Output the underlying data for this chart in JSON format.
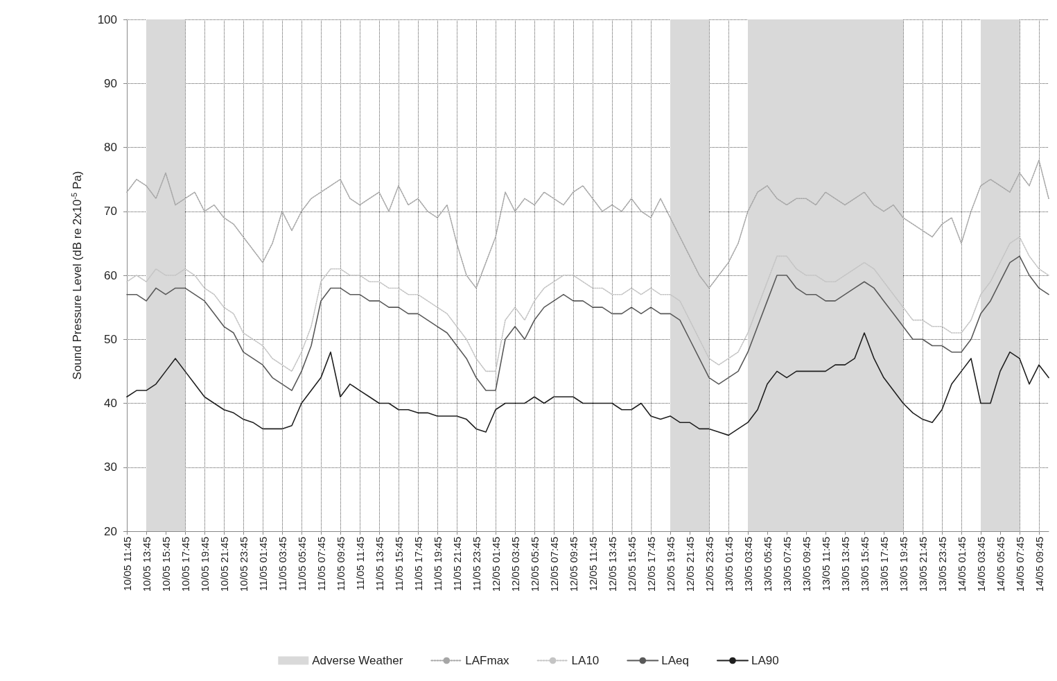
{
  "chart_data": {
    "type": "line",
    "ylabel": "Sound Pressure Level (dB re 2x10$^{-5}$ Pa)",
    "categories": [
      "10/05 11:45",
      null,
      "10/05 13:45",
      null,
      "10/05 15:45",
      null,
      "10/05 17:45",
      null,
      "10/05 19:45",
      null,
      "10/05 21:45",
      null,
      "10/05 23:45",
      null,
      "11/05 01:45",
      null,
      "11/05 03:45",
      null,
      "11/05 05:45",
      null,
      "11/05 07:45",
      null,
      "11/05 09:45",
      null,
      "11/05 11:45",
      null,
      "11/05 13:45",
      null,
      "11/05 15:45",
      null,
      "11/05 17:45",
      null,
      "11/05 19:45",
      null,
      "11/05 21:45",
      null,
      "11/05 23:45",
      null,
      "12/05 01:45",
      null,
      "12/05 03:45",
      null,
      "12/05 05:45",
      null,
      "12/05 07:45",
      null,
      "12/05 09:45",
      null,
      "12/05 11:45",
      null,
      "12/05 13:45",
      null,
      "12/05 15:45",
      null,
      "12/05 17:45",
      null,
      "12/05 19:45",
      null,
      "12/05 21:45",
      null,
      "12/05 23:45",
      null,
      "13/05 01:45",
      null,
      "13/05 03:45",
      null,
      "13/05 05:45",
      null,
      "13/05 07:45",
      null,
      "13/05 09:45",
      null,
      "13/05 11:45",
      null,
      "13/05 13:45",
      null,
      "13/05 15:45",
      null,
      "13/05 17:45",
      null,
      "13/05 19:45",
      null,
      "13/05 21:45",
      null,
      "13/05 23:45",
      null,
      "14/05 01:45",
      null,
      "14/05 03:45",
      null,
      "14/05 05:45",
      null,
      "14/05 07:45",
      null,
      "14/05 09:45",
      null
    ],
    "ylim": [
      20,
      100
    ],
    "yticks": [
      20,
      30,
      40,
      50,
      60,
      70,
      80,
      90,
      100
    ],
    "grid": true,
    "legend": "bottom",
    "marker": "none",
    "bands": [
      {
        "axis": "x",
        "from": "10/05 13:45",
        "to": "10/05 17:45",
        "label": "Adverse Weather",
        "color": "#d9d9d9"
      },
      {
        "axis": "x",
        "from": "12/05 19:45",
        "to": "12/05 23:45",
        "color": "#d9d9d9"
      },
      {
        "axis": "x",
        "from": "13/05 03:45",
        "to": "13/05 19:45",
        "color": "#d9d9d9"
      },
      {
        "axis": "x",
        "from": "14/05 03:45",
        "to": "14/05 07:45",
        "color": "#d9d9d9"
      }
    ],
    "series": [
      {
        "name": "LAFmax",
        "color": "#a6a6a6",
        "line_style": "dotted",
        "values": [
          73,
          75,
          74,
          72,
          76,
          71,
          72,
          73,
          70,
          71,
          69,
          68,
          66,
          64,
          62,
          65,
          70,
          67,
          70,
          72,
          73,
          74,
          75,
          72,
          71,
          72,
          73,
          70,
          74,
          71,
          72,
          70,
          69,
          71,
          65,
          60,
          58,
          62,
          66,
          73,
          70,
          72,
          71,
          73,
          72,
          71,
          73,
          74,
          72,
          70,
          71,
          70,
          72,
          70,
          69,
          72,
          69,
          66,
          63,
          60,
          58,
          60,
          62,
          65,
          70,
          73,
          74,
          72,
          71,
          72,
          72,
          71,
          73,
          72,
          71,
          72,
          73,
          71,
          70,
          71,
          69,
          68,
          67,
          66,
          68,
          69,
          65,
          70,
          74,
          75,
          74,
          73,
          76,
          74,
          78,
          72
        ]
      },
      {
        "name": "LA10",
        "color": "#c4c4c4",
        "line_style": "dotted",
        "values": [
          59,
          60,
          59,
          61,
          60,
          60,
          61,
          60,
          58,
          57,
          55,
          54,
          51,
          50,
          49,
          47,
          46,
          45,
          48,
          52,
          59,
          61,
          61,
          60,
          60,
          59,
          59,
          58,
          58,
          57,
          57,
          56,
          55,
          54,
          52,
          50,
          47,
          45,
          45,
          53,
          55,
          53,
          56,
          58,
          59,
          60,
          60,
          59,
          58,
          58,
          57,
          57,
          58,
          57,
          58,
          57,
          57,
          56,
          53,
          50,
          47,
          46,
          47,
          48,
          51,
          55,
          59,
          63,
          63,
          61,
          60,
          60,
          59,
          59,
          60,
          61,
          62,
          61,
          59,
          57,
          55,
          53,
          53,
          52,
          52,
          51,
          51,
          53,
          57,
          59,
          62,
          65,
          66,
          63,
          61,
          60
        ]
      },
      {
        "name": "LAeq",
        "color": "#595959",
        "line_style": "solid",
        "values": [
          57,
          57,
          56,
          58,
          57,
          58,
          58,
          57,
          56,
          54,
          52,
          51,
          48,
          47,
          46,
          44,
          43,
          42,
          45,
          49,
          56,
          58,
          58,
          57,
          57,
          56,
          56,
          55,
          55,
          54,
          54,
          53,
          52,
          51,
          49,
          47,
          44,
          42,
          42,
          50,
          52,
          50,
          53,
          55,
          56,
          57,
          56,
          56,
          55,
          55,
          54,
          54,
          55,
          54,
          55,
          54,
          54,
          53,
          50,
          47,
          44,
          43,
          44,
          45,
          48,
          52,
          56,
          60,
          60,
          58,
          57,
          57,
          56,
          56,
          57,
          58,
          59,
          58,
          56,
          54,
          52,
          50,
          50,
          49,
          49,
          48,
          48,
          50,
          54,
          56,
          59,
          62,
          63,
          60,
          58,
          57
        ]
      },
      {
        "name": "LA90",
        "color": "#1f1f1f",
        "line_style": "solid",
        "values": [
          41,
          42,
          42,
          43,
          45,
          47,
          45,
          43,
          41,
          40,
          39,
          38.5,
          37.5,
          37,
          36,
          36,
          36,
          36.5,
          40,
          42,
          44,
          48,
          41,
          43,
          42,
          41,
          40,
          40,
          39,
          39,
          38.5,
          38.5,
          38,
          38,
          38,
          37.5,
          36,
          35.5,
          39,
          40,
          40,
          40,
          41,
          40,
          41,
          41,
          41,
          40,
          40,
          40,
          40,
          39,
          39,
          40,
          38,
          37.5,
          38,
          37,
          37,
          36,
          36,
          35.5,
          35,
          36,
          37,
          39,
          43,
          45,
          44,
          45,
          45,
          45,
          45,
          46,
          46,
          47,
          51,
          47,
          44,
          42,
          40,
          38.5,
          37.5,
          37,
          39,
          43,
          45,
          47,
          40,
          40,
          45,
          48,
          47,
          43,
          46,
          44
        ]
      }
    ]
  }
}
